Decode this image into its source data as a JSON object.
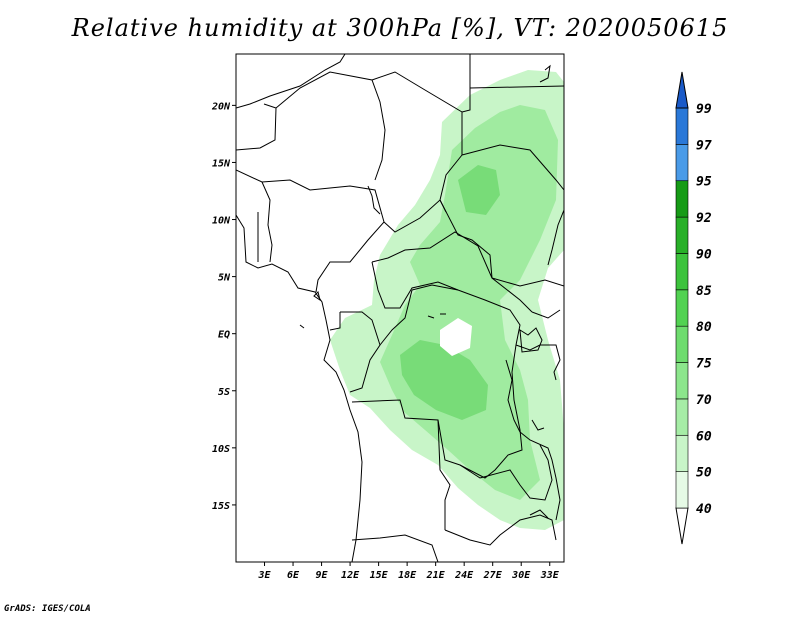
{
  "title": "Relative humidity at 300hPa [%], VT: 2020050615",
  "credit": "GrADS: IGES/COLA",
  "map": {
    "lon_range": [
      0,
      34.5
    ],
    "lat_range": [
      -20,
      24.5
    ],
    "lon_ticks": [
      {
        "value": 3,
        "label": "3E"
      },
      {
        "value": 6,
        "label": "6E"
      },
      {
        "value": 9,
        "label": "9E"
      },
      {
        "value": 12,
        "label": "12E"
      },
      {
        "value": 15,
        "label": "15E"
      },
      {
        "value": 18,
        "label": "18E"
      },
      {
        "value": 21,
        "label": "21E"
      },
      {
        "value": 24,
        "label": "24E"
      },
      {
        "value": 27,
        "label": "27E"
      },
      {
        "value": 30,
        "label": "30E"
      },
      {
        "value": 33,
        "label": "33E"
      }
    ],
    "lat_ticks": [
      {
        "value": 20,
        "label": "20N"
      },
      {
        "value": 15,
        "label": "15N"
      },
      {
        "value": 10,
        "label": "10N"
      },
      {
        "value": 5,
        "label": "5N"
      },
      {
        "value": 0,
        "label": "EQ"
      },
      {
        "value": -5,
        "label": "5S"
      },
      {
        "value": -10,
        "label": "10S"
      },
      {
        "value": -15,
        "label": "15S"
      }
    ]
  },
  "colorbar": {
    "levels": [
      "40",
      "50",
      "60",
      "70",
      "75",
      "80",
      "85",
      "90",
      "92",
      "95",
      "97",
      "99"
    ],
    "colors": [
      "#e6fae6",
      "#c8f5c8",
      "#a6eda6",
      "#8ce68c",
      "#6edc6e",
      "#52d252",
      "#3cc33c",
      "#28b028",
      "#169b16",
      "#4a9be8",
      "#2a78d8",
      "#1a5ac8"
    ]
  },
  "humidity_fill": {
    "light": "#c8f5c8",
    "medium": "#a0eba0",
    "strong": "#78dc78"
  }
}
